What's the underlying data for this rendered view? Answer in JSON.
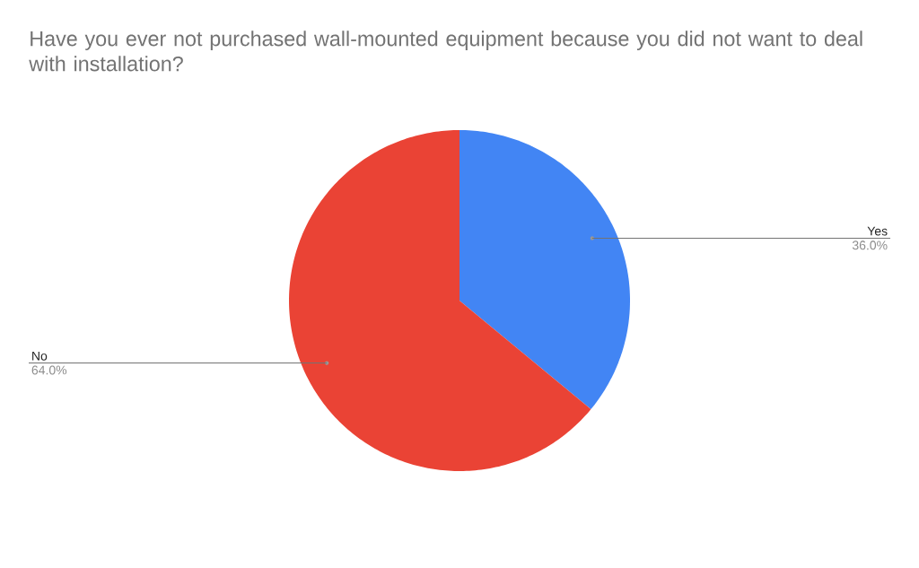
{
  "chart_data": {
    "type": "pie",
    "title": "Have you ever not purchased wall-mounted equipment because you did not want to deal with installation?",
    "categories": [
      "Yes",
      "No"
    ],
    "values": [
      36.0,
      64.0
    ],
    "colors": [
      "#4285f4",
      "#ea4335"
    ],
    "value_labels": [
      "36.0%",
      "64.0%"
    ]
  }
}
